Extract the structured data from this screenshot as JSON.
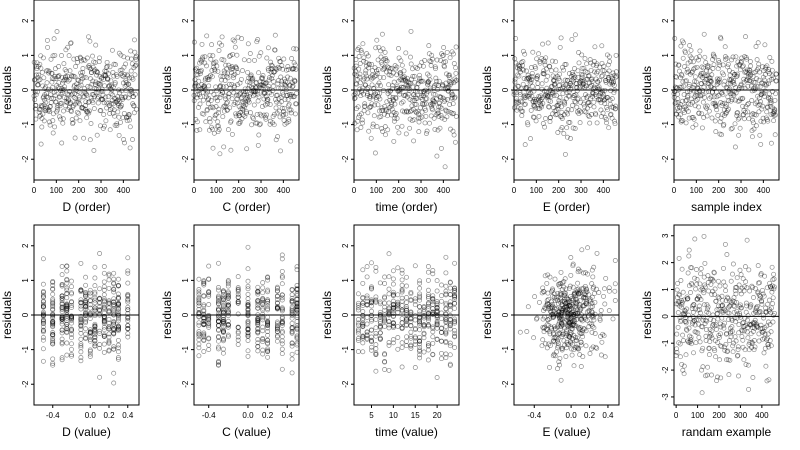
{
  "colors": {
    "point": "#000000",
    "axis": "#000000",
    "zero_line": "#000000",
    "background": "#ffffff"
  },
  "chart_data": [
    {
      "type": "scatter",
      "xlabel": "D (order)",
      "ylabel": "residuals",
      "xlim": [
        0,
        470
      ],
      "ylim": [
        -2.6,
        2.6
      ],
      "xticks": [
        0,
        100,
        200,
        300,
        400
      ],
      "xticklabels": [
        "0",
        "100",
        "200",
        "300",
        "400"
      ],
      "yticks": [
        -2,
        -1,
        0,
        1,
        2
      ],
      "yticklabels": [
        "-2",
        "-1",
        "0",
        "1",
        "2"
      ],
      "hline": 0,
      "n": 460,
      "x_kind": "index",
      "seed": 11,
      "sd": 0.62
    },
    {
      "type": "scatter",
      "xlabel": "C (order)",
      "ylabel": "residuals",
      "xlim": [
        0,
        470
      ],
      "ylim": [
        -2.6,
        2.6
      ],
      "xticks": [
        0,
        100,
        200,
        300,
        400
      ],
      "xticklabels": [
        "0",
        "100",
        "200",
        "300",
        "400"
      ],
      "yticks": [
        -2,
        -1,
        0,
        1,
        2
      ],
      "yticklabels": [
        "-2",
        "-1",
        "0",
        "1",
        "2"
      ],
      "hline": 0,
      "n": 460,
      "x_kind": "index",
      "seed": 22,
      "sd": 0.62
    },
    {
      "type": "scatter",
      "xlabel": "time (order)",
      "ylabel": "residuals",
      "xlim": [
        0,
        470
      ],
      "ylim": [
        -2.6,
        2.6
      ],
      "xticks": [
        0,
        100,
        200,
        300,
        400
      ],
      "xticklabels": [
        "0",
        "100",
        "200",
        "300",
        "400"
      ],
      "yticks": [
        -2,
        -1,
        0,
        1,
        2
      ],
      "yticklabels": [
        "-2",
        "-1",
        "0",
        "1",
        "2"
      ],
      "hline": 0,
      "n": 460,
      "x_kind": "index",
      "seed": 33,
      "sd": 0.62
    },
    {
      "type": "scatter",
      "xlabel": "E (order)",
      "ylabel": "residuals",
      "xlim": [
        0,
        470
      ],
      "ylim": [
        -2.6,
        2.6
      ],
      "xticks": [
        0,
        100,
        200,
        300,
        400
      ],
      "xticklabels": [
        "0",
        "100",
        "200",
        "300",
        "400"
      ],
      "yticks": [
        -2,
        -1,
        0,
        1,
        2
      ],
      "yticklabels": [
        "-2",
        "-1",
        "0",
        "1",
        "2"
      ],
      "hline": 0,
      "n": 460,
      "x_kind": "index",
      "seed": 44,
      "sd": 0.62
    },
    {
      "type": "scatter",
      "xlabel": "sample index",
      "ylabel": "residuals",
      "xlim": [
        0,
        470
      ],
      "ylim": [
        -2.6,
        2.6
      ],
      "xticks": [
        0,
        100,
        200,
        300,
        400
      ],
      "xticklabels": [
        "0",
        "100",
        "200",
        "300",
        "400"
      ],
      "yticks": [
        -2,
        -1,
        0,
        1,
        2
      ],
      "yticklabels": [
        "-2",
        "-1",
        "0",
        "1",
        "2"
      ],
      "hline": 0,
      "n": 460,
      "x_kind": "index",
      "seed": 55,
      "sd": 0.62
    },
    {
      "type": "scatter",
      "xlabel": "D (value)",
      "ylabel": "residuals",
      "xlim": [
        -0.6,
        0.52
      ],
      "ylim": [
        -2.6,
        2.6
      ],
      "xticks": [
        -0.4,
        0,
        0.2,
        0.4
      ],
      "xticklabels": [
        "-0.4",
        "0.0",
        "0.2",
        "0.4"
      ],
      "yticks": [
        -2,
        -1,
        0,
        1,
        2
      ],
      "yticklabels": [
        "-2",
        "-1",
        "0",
        "1",
        "2"
      ],
      "hline": 0,
      "n": 460,
      "x_kind": "discrete",
      "x_levels": [
        -0.5,
        -0.4,
        -0.3,
        -0.25,
        -0.2,
        -0.1,
        -0.05,
        0,
        0.05,
        0.1,
        0.15,
        0.2,
        0.25,
        0.3,
        0.4
      ],
      "seed": 66,
      "sd": 0.62
    },
    {
      "type": "scatter",
      "xlabel": "C (value)",
      "ylabel": "residuals",
      "xlim": [
        -0.55,
        0.52
      ],
      "ylim": [
        -2.6,
        2.6
      ],
      "xticks": [
        -0.4,
        0,
        0.2,
        0.4
      ],
      "xticklabels": [
        "-0.4",
        "0.0",
        "0.2",
        "0.4"
      ],
      "yticks": [
        -2,
        -1,
        0,
        1,
        2
      ],
      "yticklabels": [
        "-2",
        "-1",
        "0",
        "1",
        "2"
      ],
      "hline": 0,
      "n": 460,
      "x_kind": "discrete",
      "x_levels": [
        -0.5,
        -0.45,
        -0.4,
        -0.3,
        -0.25,
        -0.2,
        -0.1,
        0,
        0.1,
        0.15,
        0.2,
        0.3,
        0.35,
        0.45,
        0.5
      ],
      "seed": 77,
      "sd": 0.62
    },
    {
      "type": "scatter",
      "xlabel": "time (value)",
      "ylabel": "residuals",
      "xlim": [
        1,
        25
      ],
      "ylim": [
        -2.6,
        2.6
      ],
      "xticks": [
        5,
        10,
        15,
        20
      ],
      "xticklabels": [
        "5",
        "10",
        "15",
        "20"
      ],
      "yticks": [
        -2,
        -1,
        0,
        1,
        2
      ],
      "yticklabels": [
        "-2",
        "-1",
        "0",
        "1",
        "2"
      ],
      "hline": 0,
      "n": 460,
      "x_kind": "discrete",
      "x_levels": [
        2,
        3,
        4,
        5,
        6,
        7,
        8,
        9,
        10,
        11,
        12,
        13,
        14,
        15,
        16,
        17,
        18,
        19,
        20,
        21,
        22,
        23,
        24
      ],
      "seed": 88,
      "sd": 0.62
    },
    {
      "type": "scatter",
      "xlabel": "E (value)",
      "ylabel": "residuals",
      "xlim": [
        -0.62,
        0.52
      ],
      "ylim": [
        -2.6,
        2.6
      ],
      "xticks": [
        -0.4,
        0,
        0.2,
        0.4
      ],
      "xticklabels": [
        "-0.4",
        "0.0",
        "0.2",
        "0.4"
      ],
      "yticks": [
        -2,
        -1,
        0,
        1,
        2
      ],
      "yticklabels": [
        "-2",
        "-1",
        "0",
        "1",
        "2"
      ],
      "hline": 0,
      "n": 460,
      "x_kind": "normal",
      "x_center": 0,
      "x_sd": 0.17,
      "seed": 99,
      "sd": 0.62
    },
    {
      "type": "scatter",
      "xlabel": "randam example",
      "ylabel": "residuals",
      "xlim": [
        -10,
        480
      ],
      "ylim": [
        -3.3,
        3.4
      ],
      "xticks": [
        0,
        100,
        200,
        300,
        400
      ],
      "xticklabels": [
        "0",
        "100",
        "200",
        "300",
        "400"
      ],
      "yticks": [
        -3,
        -2,
        -1,
        0,
        1,
        2,
        3
      ],
      "yticklabels": [
        "-3",
        "-2",
        "-1",
        "0",
        "1",
        "2",
        "3"
      ],
      "hline": 0,
      "n": 460,
      "x_kind": "index",
      "seed": 123,
      "sd": 1.0
    }
  ]
}
